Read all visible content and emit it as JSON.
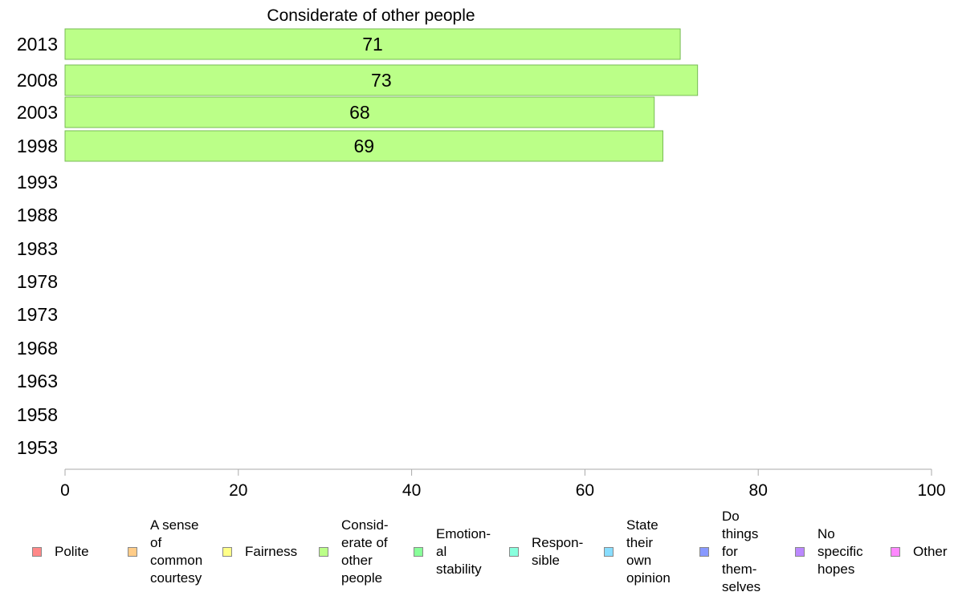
{
  "chart_data": {
    "type": "bar",
    "orientation": "horizontal",
    "title": "Considerate of other people",
    "categories": [
      "2013",
      "2008",
      "2003",
      "1998",
      "1993",
      "1988",
      "1983",
      "1978",
      "1973",
      "1968",
      "1963",
      "1958",
      "1953"
    ],
    "series": [
      {
        "name": "Consid-\nerate of\nother\npeople",
        "values": [
          71,
          73,
          68,
          69,
          null,
          null,
          null,
          null,
          null,
          null,
          null,
          null,
          null
        ],
        "color": "#bbff88"
      }
    ],
    "data_labels": [
      "71",
      "73",
      "68",
      "69"
    ],
    "xlim": [
      0,
      100
    ],
    "xticks": [
      "0",
      "20",
      "40",
      "60",
      "80",
      "100"
    ],
    "grid": false,
    "legend_position": "bottom"
  },
  "legend": [
    {
      "label": "Polite",
      "color": "#ff8888"
    },
    {
      "label": "A sense\nof\ncommon\ncourtesy",
      "color": "#ffcc88"
    },
    {
      "label": "Fairness",
      "color": "#ffff88"
    },
    {
      "label": "Consid-\nerate of\nother\npeople",
      "color": "#bbff88"
    },
    {
      "label": "Emotion-\nal\nstability",
      "color": "#88ff99"
    },
    {
      "label": "Respon-\nsible",
      "color": "#88ffdd"
    },
    {
      "label": "State\ntheir\nown\nopinion",
      "color": "#88ddff"
    },
    {
      "label": "Do\nthings\nfor\nthem-\nselves",
      "color": "#8899ff"
    },
    {
      "label": "No\nspecific\nhopes",
      "color": "#bb88ff"
    },
    {
      "label": "Other",
      "color": "#ff88ff"
    }
  ]
}
